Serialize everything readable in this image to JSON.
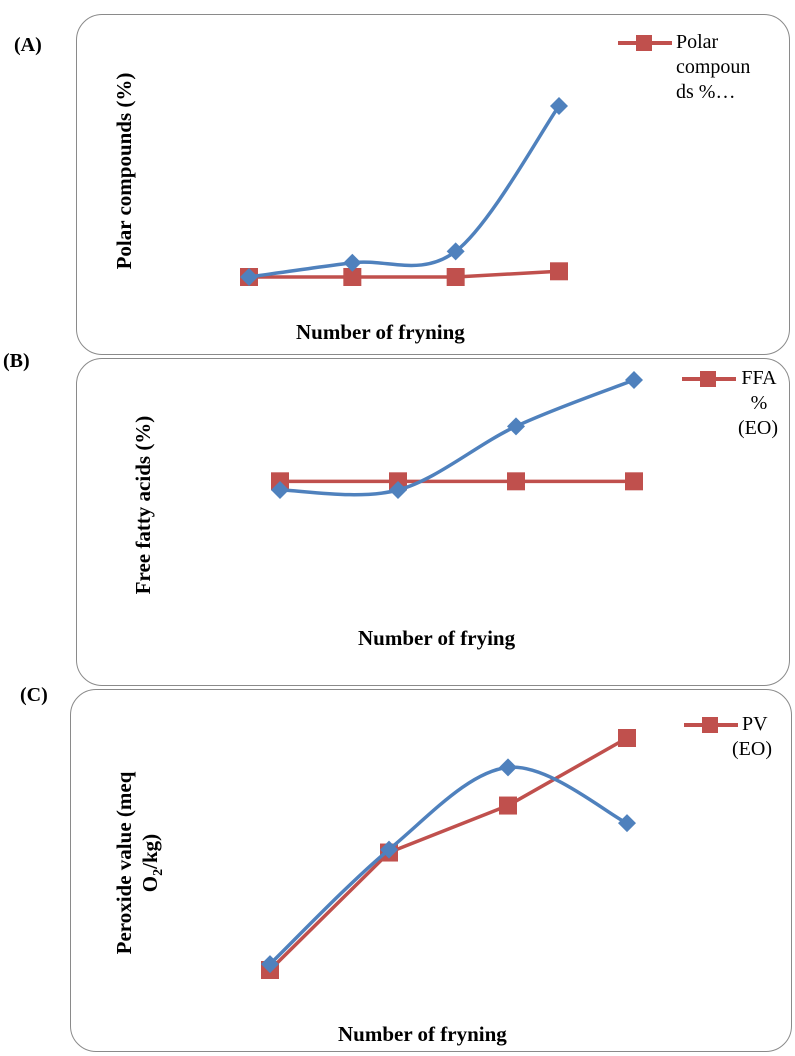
{
  "colors": {
    "red": "#c0504d",
    "blue": "#4f81bd",
    "border": "#8a8a8a"
  },
  "panels": [
    {
      "letter": "(A)",
      "xlabel": "Number of fryning",
      "ylabel_lines": [
        "Polar compounds (%)"
      ],
      "legend_lines": [
        "Polar",
        "compoun",
        "ds %…"
      ],
      "chart_data": {
        "type": "line",
        "title": "",
        "xlabel": "Number of fryning",
        "ylabel": "Polar compounds (%)",
        "x": [
          1,
          2,
          3,
          4
        ],
        "ylim": [
          0,
          100
        ],
        "grid": false,
        "legend": "top-right",
        "series": [
          {
            "name": "Polar compounds %…",
            "color": "#c0504d",
            "marker": "square",
            "smooth": false,
            "values": [
              30,
              30,
              30,
              32
            ]
          },
          {
            "name": "",
            "color": "#4f81bd",
            "marker": "diamond",
            "smooth": true,
            "values": [
              30,
              35,
              39,
              90
            ]
          }
        ]
      }
    },
    {
      "letter": "(B)",
      "xlabel": "Number of frying",
      "ylabel_lines": [
        "Free fatty acids  (%)"
      ],
      "legend_lines": [
        "FFA",
        "%",
        "(EO)"
      ],
      "chart_data": {
        "type": "line",
        "title": "",
        "xlabel": "Number of frying",
        "ylabel": "Free fatty acids  (%)",
        "x": [
          1,
          2,
          3,
          4
        ],
        "ylim": [
          0,
          100
        ],
        "grid": false,
        "legend": "top-right",
        "series": [
          {
            "name": "FFA % (EO)",
            "color": "#c0504d",
            "marker": "square",
            "smooth": false,
            "values": [
              45,
              45,
              45,
              45
            ]
          },
          {
            "name": "",
            "color": "#4f81bd",
            "marker": "diamond",
            "smooth": true,
            "values": [
              42,
              42,
              64,
              80
            ]
          }
        ]
      }
    },
    {
      "letter": "(C)",
      "xlabel": "Number of  fryning",
      "ylabel_lines": [
        "Peroxide value (meq",
        "O2/kg)"
      ],
      "legend_lines": [
        "PV",
        "(EO)"
      ],
      "chart_data": {
        "type": "line",
        "title": "",
        "xlabel": "Number of  fryning",
        "ylabel": "Peroxide value (meq O2/kg)",
        "x": [
          1,
          2,
          3,
          4
        ],
        "ylim": [
          0,
          100
        ],
        "grid": false,
        "legend": "top-right",
        "series": [
          {
            "name": "PV (EO)",
            "color": "#c0504d",
            "marker": "square",
            "smooth": false,
            "values": [
              12,
              52,
              68,
              91
            ]
          },
          {
            "name": "",
            "color": "#4f81bd",
            "marker": "diamond",
            "smooth": true,
            "values": [
              14,
              53,
              81,
              62
            ]
          }
        ]
      }
    }
  ]
}
